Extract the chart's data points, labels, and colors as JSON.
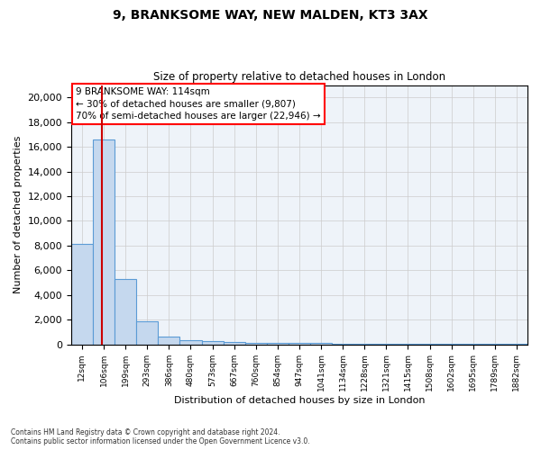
{
  "title1": "9, BRANKSOME WAY, NEW MALDEN, KT3 3AX",
  "title2": "Size of property relative to detached houses in London",
  "xlabel": "Distribution of detached houses by size in London",
  "ylabel": "Number of detached properties",
  "footer1": "Contains HM Land Registry data © Crown copyright and database right 2024.",
  "footer2": "Contains public sector information licensed under the Open Government Licence v3.0.",
  "annotation_line1": "9 BRANKSOME WAY: 114sqm",
  "annotation_line2": "← 30% of detached houses are smaller (9,807)",
  "annotation_line3": "70% of semi-detached houses are larger (22,946) →",
  "bar_color": "#c5d8ee",
  "bar_edge_color": "#5b9bd5",
  "red_line_color": "#cc0000",
  "categories": [
    "12sqm",
    "106sqm",
    "199sqm",
    "293sqm",
    "386sqm",
    "480sqm",
    "573sqm",
    "667sqm",
    "760sqm",
    "854sqm",
    "947sqm",
    "1041sqm",
    "1134sqm",
    "1228sqm",
    "1321sqm",
    "1415sqm",
    "1508sqm",
    "1602sqm",
    "1695sqm",
    "1789sqm",
    "1882sqm"
  ],
  "values": [
    8100,
    16600,
    5300,
    1900,
    650,
    350,
    230,
    170,
    130,
    100,
    90,
    80,
    70,
    65,
    60,
    55,
    50,
    45,
    40,
    35,
    30
  ],
  "red_line_x": 0.93,
  "ylim": [
    0,
    21000
  ],
  "yticks": [
    0,
    2000,
    4000,
    6000,
    8000,
    10000,
    12000,
    14000,
    16000,
    18000,
    20000
  ],
  "grid_color": "#cccccc",
  "bg_color": "#eef3f9"
}
